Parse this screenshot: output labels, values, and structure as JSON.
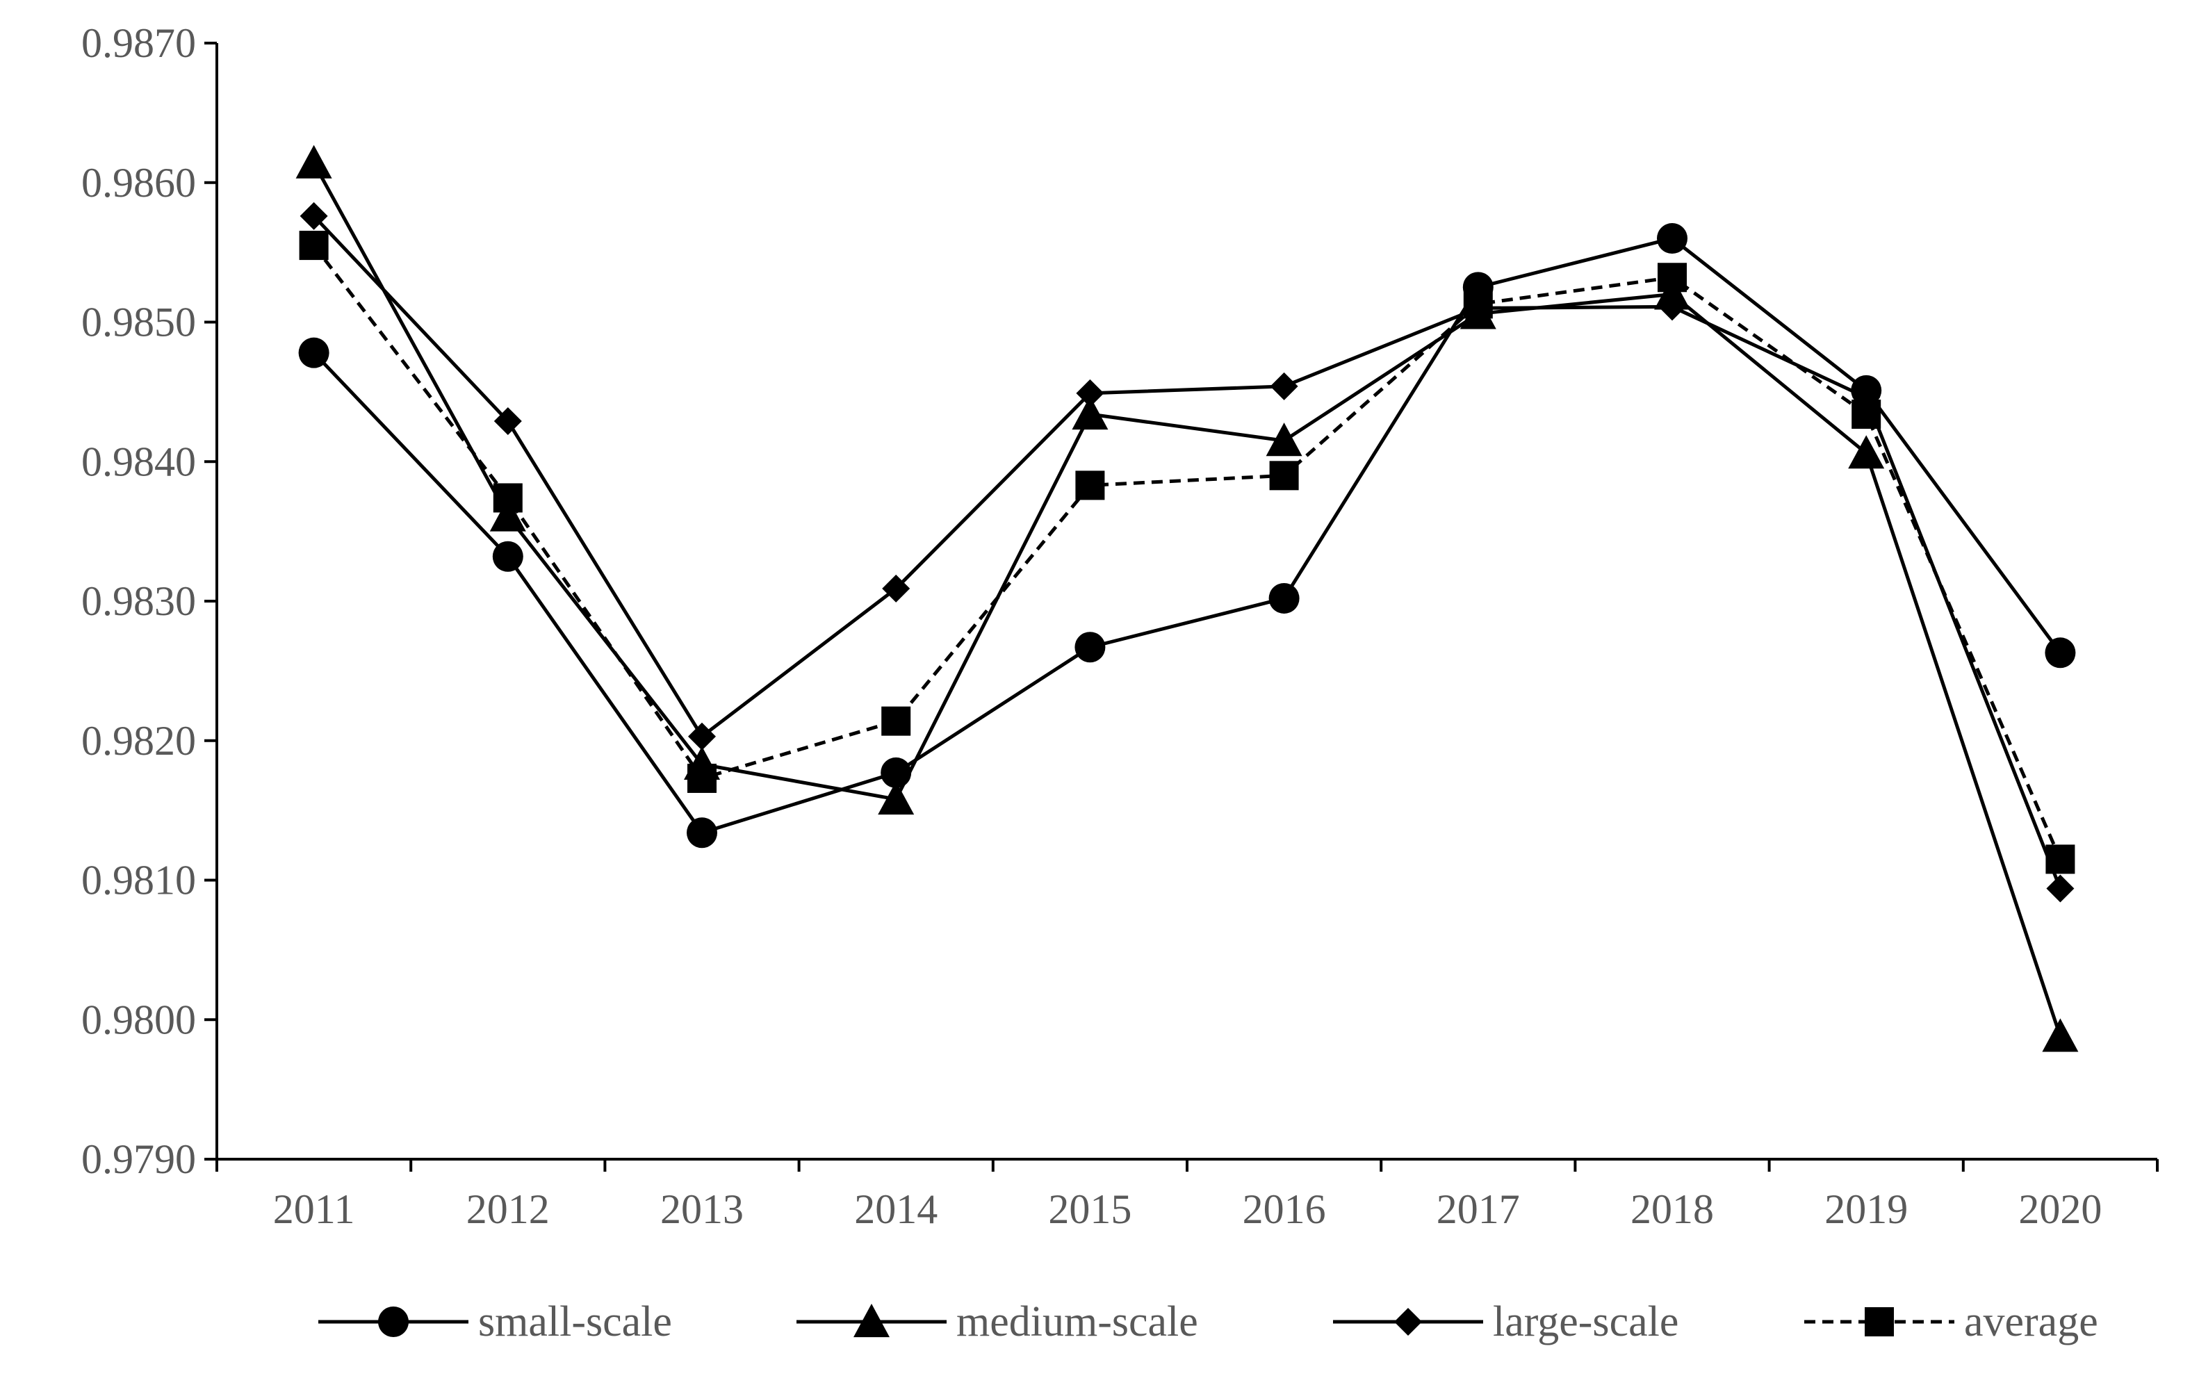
{
  "chart_data": {
    "type": "line",
    "title": "",
    "xlabel": "",
    "ylabel": "",
    "categories": [
      "2011",
      "2012",
      "2013",
      "2014",
      "2015",
      "2016",
      "2017",
      "2018",
      "2019",
      "2020"
    ],
    "y_tick_labels": [
      "0.9790",
      "0.9800",
      "0.9810",
      "0.9820",
      "0.9830",
      "0.9840",
      "0.9850",
      "0.9860",
      "0.9870"
    ],
    "ylim": [
      0.979,
      0.987
    ],
    "grid": false,
    "legend_position": "bottom",
    "series": [
      {
        "name": "small-scale",
        "marker": "circle",
        "dash": "solid",
        "color": "#000000",
        "values": [
          0.98478,
          0.98332,
          0.98134,
          0.98177,
          0.98267,
          0.98302,
          0.98525,
          0.9856,
          0.98451,
          0.98263
        ]
      },
      {
        "name": "medium-scale",
        "marker": "triangle",
        "dash": "solid",
        "color": "#000000",
        "values": [
          0.98614,
          0.98361,
          0.98183,
          0.98158,
          0.98434,
          0.98415,
          0.98506,
          0.9852,
          0.98406,
          0.97988
        ]
      },
      {
        "name": "large-scale",
        "marker": "diamond",
        "dash": "solid",
        "color": "#000000",
        "values": [
          0.98576,
          0.98429,
          0.98203,
          0.98309,
          0.98449,
          0.98454,
          0.9851,
          0.98511,
          0.98446,
          0.98094
        ]
      },
      {
        "name": "average",
        "marker": "square",
        "dash": "dashed",
        "color": "#000000",
        "values": [
          0.98555,
          0.98374,
          0.98173,
          0.98214,
          0.98383,
          0.9839,
          0.98513,
          0.98532,
          0.98434,
          0.98115
        ]
      }
    ]
  }
}
